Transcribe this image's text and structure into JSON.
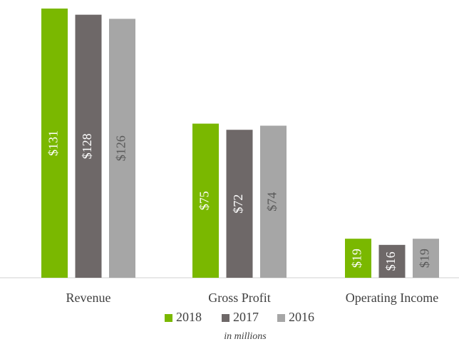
{
  "chart_data": {
    "type": "bar",
    "categories": [
      "Revenue",
      "Gross Profit",
      "Operating Income"
    ],
    "series": [
      {
        "name": "2018",
        "color": "#7ab800",
        "values": [
          131,
          75,
          19
        ],
        "value_labels": [
          "$131",
          "$75",
          "$19"
        ]
      },
      {
        "name": "2017",
        "color": "#6e6868",
        "values": [
          128,
          72,
          16
        ],
        "value_labels": [
          "$128",
          "$72",
          "$16"
        ]
      },
      {
        "name": "2016",
        "color": "#a6a6a6",
        "values": [
          126,
          74,
          19
        ],
        "value_labels": [
          "$126",
          "$74",
          "$19"
        ]
      }
    ],
    "note": "in millions"
  }
}
